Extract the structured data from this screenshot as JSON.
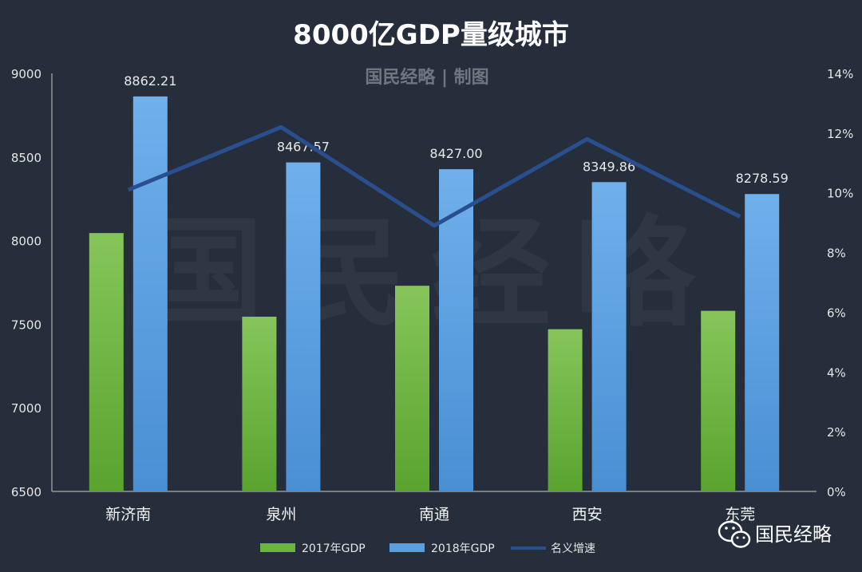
{
  "brand": {
    "credit": "国民经略 | 制图",
    "watermark": "国民经略",
    "footer_name": "国民经略"
  },
  "colors": {
    "background": "#262e3b",
    "bar_2017": "#6db33f",
    "bar_2018": "#5a9ee0",
    "line": "#2a4f8f",
    "axis": "#c8c8c8"
  },
  "chart_data": {
    "type": "bar",
    "title": "8000亿GDP量级城市",
    "categories": [
      "新济南",
      "泉州",
      "南通",
      "西安",
      "东莞"
    ],
    "ylim": [
      6500,
      9000
    ],
    "yticks": [
      "6500",
      "7000",
      "7500",
      "8000",
      "8500",
      "9000"
    ],
    "y2lim": [
      0,
      14
    ],
    "y2ticks": [
      "0%",
      "2%",
      "4%",
      "6%",
      "8%",
      "10%",
      "12%",
      "14%"
    ],
    "grid": false,
    "legend_position": "bottom",
    "series": [
      {
        "name": "2017年GDP",
        "type": "bar",
        "axis": "left",
        "values": [
          8045,
          7545,
          7730,
          7470,
          7580
        ]
      },
      {
        "name": "2018年GDP",
        "type": "bar",
        "axis": "left",
        "values": [
          8862.21,
          8467.57,
          8427.0,
          8349.86,
          8278.59
        ],
        "labels": [
          "8862.21",
          "8467.57",
          "8427.00",
          "8349.86",
          "8278.59"
        ]
      },
      {
        "name": "名义增速",
        "type": "line",
        "axis": "right",
        "values": [
          10.1,
          12.2,
          8.9,
          11.8,
          9.2
        ]
      }
    ]
  }
}
